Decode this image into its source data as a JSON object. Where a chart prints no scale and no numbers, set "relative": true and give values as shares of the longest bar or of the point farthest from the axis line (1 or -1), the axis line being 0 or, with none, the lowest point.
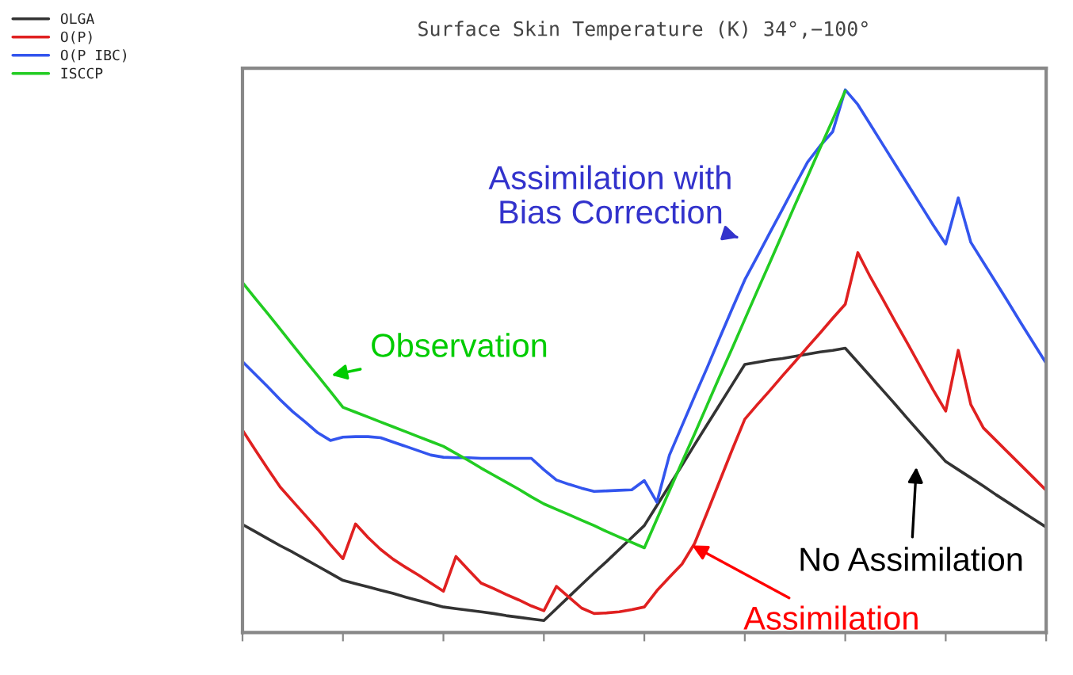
{
  "chart_data": {
    "type": "line",
    "title": "Surface Skin Temperature (K) 34°,−100°",
    "relative": true,
    "categories": [
      null,
      null,
      null,
      null,
      null,
      null,
      null,
      null,
      null,
      null,
      null,
      null,
      null,
      null,
      null,
      null,
      null,
      null,
      null,
      null,
      null,
      null,
      null,
      null,
      null,
      null,
      null,
      null,
      null,
      null,
      null,
      null,
      null,
      null,
      null,
      null,
      null,
      null,
      null,
      null,
      null,
      null,
      null,
      null,
      null,
      null,
      null,
      null,
      null,
      null,
      null,
      null,
      null,
      null,
      null,
      null,
      null,
      null,
      null,
      null,
      null,
      null,
      null,
      null,
      null
    ],
    "legend": "top left",
    "line_style": "solid",
    "series": [
      {
        "name": "OLGA",
        "color": "#333333",
        "values": [
          0.199,
          0.186,
          0.173,
          0.16,
          0.148,
          0.135,
          0.122,
          0.109,
          0.096,
          0.09,
          0.084,
          0.078,
          0.072,
          0.065,
          0.059,
          0.053,
          0.047,
          0.044,
          0.041,
          0.038,
          0.035,
          0.031,
          0.028,
          0.025,
          0.022,
          0.044,
          0.066,
          0.088,
          0.11,
          0.131,
          0.153,
          0.175,
          0.197,
          0.234,
          0.271,
          0.308,
          0.346,
          0.383,
          0.42,
          0.457,
          0.494,
          0.498,
          0.502,
          0.505,
          0.509,
          0.513,
          0.517,
          0.52,
          0.524,
          0.498,
          0.472,
          0.446,
          0.42,
          0.393,
          0.367,
          0.341,
          0.315,
          0.3,
          0.285,
          0.27,
          0.254,
          0.239,
          0.224,
          0.209,
          0.194
        ]
      },
      {
        "name": "O(P)",
        "color": "#e02020",
        "values": [
          0.373,
          0.337,
          0.302,
          0.268,
          0.242,
          0.216,
          0.19,
          0.162,
          0.136,
          0.2,
          0.175,
          0.153,
          0.135,
          0.12,
          0.106,
          0.091,
          0.076,
          0.14,
          0.115,
          0.091,
          0.081,
          0.07,
          0.06,
          0.049,
          0.04,
          0.085,
          0.065,
          0.045,
          0.035,
          0.036,
          0.038,
          0.042,
          0.047,
          0.077,
          0.102,
          0.126,
          0.164,
          0.221,
          0.279,
          0.337,
          0.393,
          0.42,
          0.446,
          0.473,
          0.499,
          0.526,
          0.552,
          0.579,
          0.605,
          0.7,
          0.655,
          0.614,
          0.572,
          0.531,
          0.489,
          0.447,
          0.408,
          0.52,
          0.42,
          0.377,
          0.354,
          0.331,
          0.308,
          0.285,
          0.262
        ]
      },
      {
        "name": "O(P IBC)",
        "color": "#3355ee",
        "values": [
          0.499,
          0.476,
          0.453,
          0.429,
          0.407,
          0.388,
          0.368,
          0.354,
          0.36,
          0.361,
          0.361,
          0.359,
          0.351,
          0.343,
          0.335,
          0.327,
          0.323,
          0.322,
          0.322,
          0.321,
          0.321,
          0.321,
          0.321,
          0.321,
          0.3,
          0.281,
          0.273,
          0.266,
          0.26,
          0.261,
          0.262,
          0.263,
          0.28,
          0.24,
          0.327,
          0.381,
          0.435,
          0.488,
          0.543,
          0.597,
          0.65,
          0.693,
          0.737,
          0.78,
          0.824,
          0.867,
          0.897,
          0.923,
          1.0,
          0.973,
          0.936,
          0.899,
          0.862,
          0.825,
          0.788,
          0.751,
          0.716,
          0.801,
          0.719,
          0.682,
          0.645,
          0.608,
          0.57,
          0.533,
          0.496
        ]
      },
      {
        "name": "ISCCP",
        "color": "#22cc22",
        "values": [
          0.645,
          0.616,
          0.588,
          0.559,
          0.53,
          0.501,
          0.473,
          0.444,
          0.415,
          0.406,
          0.397,
          0.388,
          0.379,
          0.37,
          0.361,
          0.352,
          0.343,
          0.33,
          0.317,
          0.303,
          0.29,
          0.277,
          0.264,
          0.25,
          0.237,
          0.227,
          0.217,
          0.207,
          0.197,
          0.186,
          0.176,
          0.166,
          0.156,
          0.209,
          0.261,
          0.314,
          0.366,
          0.419,
          0.472,
          0.524,
          0.577,
          0.63,
          0.682,
          0.735,
          0.788,
          0.84,
          0.893,
          0.945,
          0.998,
          null,
          null,
          null,
          null,
          null,
          null,
          null,
          null,
          null,
          null,
          null,
          null,
          null,
          null,
          null,
          null
        ]
      }
    ],
    "annotations": [
      "Assimilation with\nBias Correction",
      "Observation",
      "No Assimilation",
      "Assimilation"
    ]
  }
}
